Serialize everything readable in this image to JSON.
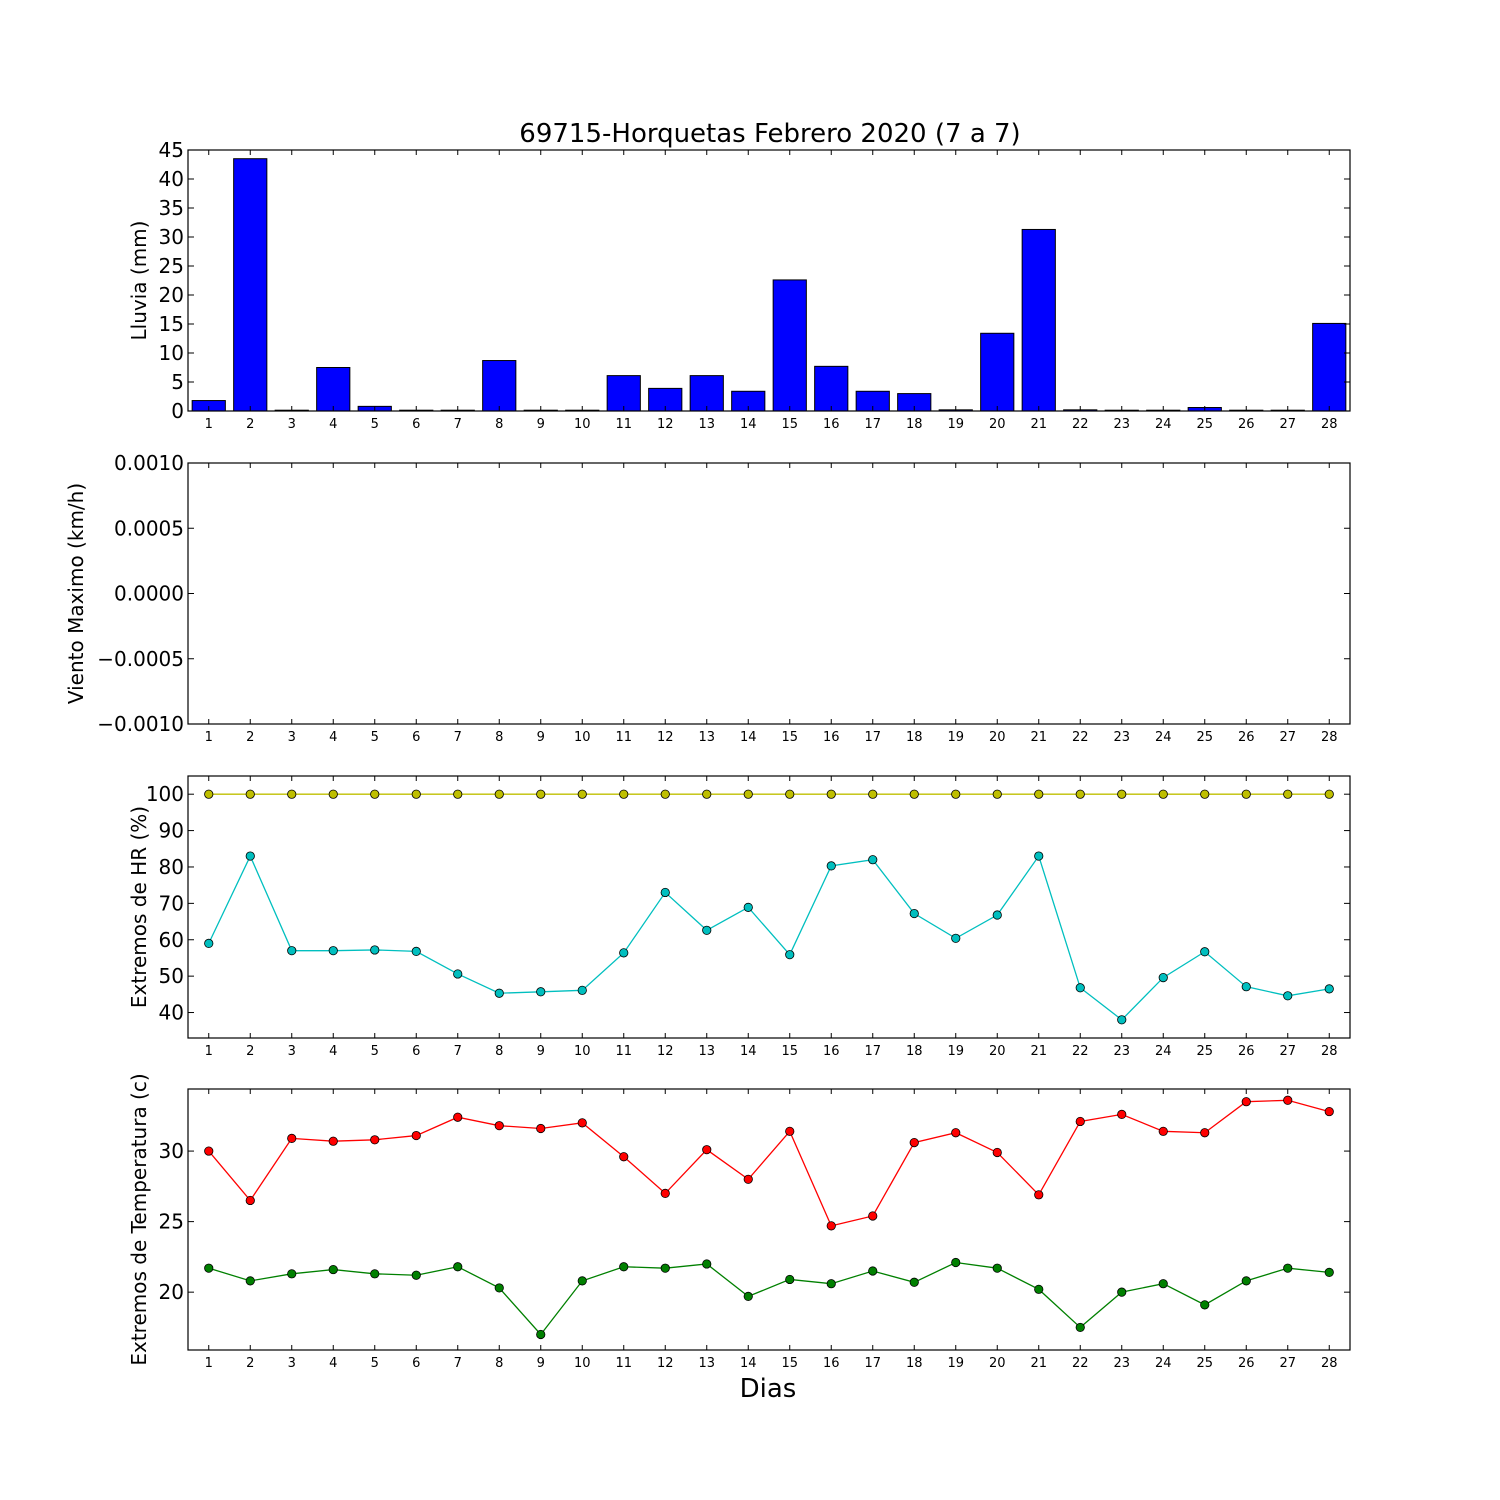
{
  "chart_data": {
    "title": "69715-Horquetas Febrero 2020  (7 a 7)",
    "xlabel": "Dias",
    "x": [
      1,
      2,
      3,
      4,
      5,
      6,
      7,
      8,
      9,
      10,
      11,
      12,
      13,
      14,
      15,
      16,
      17,
      18,
      19,
      20,
      21,
      22,
      23,
      24,
      25,
      26,
      27,
      28
    ],
    "panels": [
      {
        "id": "rain",
        "type": "bar",
        "ylabel": "Lluvia (mm)",
        "ylim": [
          0,
          45
        ],
        "yticks": [
          0,
          5,
          10,
          15,
          20,
          25,
          30,
          35,
          40,
          45
        ],
        "ytick_labels": [
          "0",
          "5",
          "10",
          "15",
          "20",
          "25",
          "30",
          "35",
          "40",
          "45"
        ],
        "series": [
          {
            "color": "#0000ff",
            "values": [
              1.8,
              43.5,
              0,
              7.5,
              0.8,
              0,
              0.1,
              8.7,
              0.1,
              0.1,
              6.1,
              3.9,
              6.1,
              3.4,
              22.6,
              7.7,
              3.4,
              3.0,
              0.2,
              13.4,
              31.3,
              0.2,
              0,
              0,
              0.6,
              0,
              0.1,
              15.1
            ]
          }
        ]
      },
      {
        "id": "wind",
        "type": "line",
        "ylabel": "Viento Maximo (km/h)",
        "ylim": [
          -0.001,
          0.001
        ],
        "yticks": [
          -0.001,
          -0.0005,
          0,
          0.0005,
          0.001
        ],
        "ytick_labels": [
          "−0.0010",
          "−0.0005",
          "0.0000",
          "0.0005",
          "0.0010"
        ],
        "series": []
      },
      {
        "id": "hr",
        "type": "line",
        "ylabel": "Extremos de HR (%)",
        "ylim": [
          33,
          105
        ],
        "yticks": [
          40,
          50,
          60,
          70,
          80,
          90,
          100
        ],
        "ytick_labels": [
          "40",
          "50",
          "60",
          "70",
          "80",
          "90",
          "100"
        ],
        "series": [
          {
            "color": "#bfbf00",
            "values": [
              100,
              100,
              100,
              100,
              100,
              100,
              100,
              100,
              100,
              100,
              100,
              100,
              100,
              100,
              100,
              100,
              100,
              100,
              100,
              100,
              100,
              100,
              100,
              100,
              100,
              100,
              100,
              100
            ]
          },
          {
            "color": "#00bfbf",
            "values": [
              59,
              83,
              57,
              57,
              57.2,
              56.8,
              50.6,
              45.3,
              45.7,
              46.1,
              56.4,
              73,
              62.6,
              68.9,
              55.9,
              80.3,
              82,
              67.2,
              60.4,
              66.8,
              83,
              46.8,
              38,
              49.6,
              56.7,
              47.1,
              44.6,
              46.5
            ]
          }
        ]
      },
      {
        "id": "temp",
        "type": "line",
        "ylabel": "Extremos de Temperatura (c)",
        "ylim": [
          15.9,
          34.4
        ],
        "yticks": [
          20,
          25,
          30
        ],
        "ytick_labels": [
          "20",
          "25",
          "30"
        ],
        "series": [
          {
            "color": "#ff0000",
            "values": [
              30,
              26.5,
              30.9,
              30.7,
              30.8,
              31.1,
              32.4,
              31.8,
              31.6,
              32,
              29.6,
              27,
              30.1,
              28,
              31.4,
              24.7,
              25.4,
              30.6,
              31.3,
              29.9,
              26.9,
              32.1,
              32.6,
              31.4,
              31.3,
              33.5,
              33.6,
              32.8
            ]
          },
          {
            "color": "#008000",
            "values": [
              21.7,
              20.8,
              21.3,
              21.6,
              21.3,
              21.2,
              21.8,
              20.3,
              17,
              20.8,
              21.8,
              21.7,
              22,
              19.7,
              20.9,
              20.6,
              21.5,
              20.7,
              22.1,
              21.7,
              20.2,
              17.5,
              20,
              20.6,
              19.1,
              20.8,
              21.7,
              21.4
            ]
          }
        ]
      }
    ]
  }
}
